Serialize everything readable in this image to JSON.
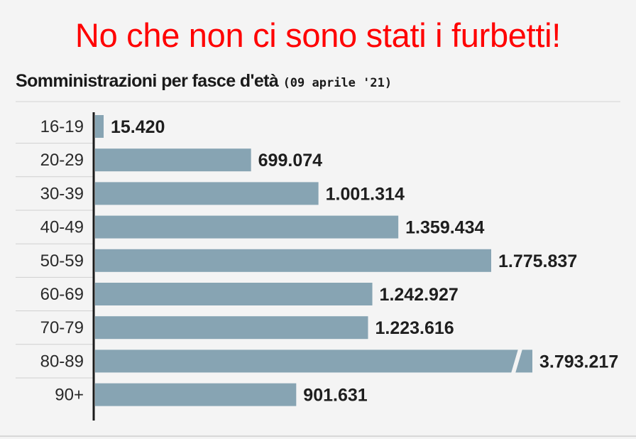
{
  "headline": "No che non ci sono stati i furbetti!",
  "subtitle_main": "Somministrazioni  per fasce d'età",
  "subtitle_date": "(09 aprile '21)",
  "colors": {
    "bar": "#87a4b3",
    "headline": "#ff0000",
    "axis": "#1a1a1a",
    "background": "#f4f4f4"
  },
  "chart_data": {
    "type": "bar",
    "orientation": "horizontal",
    "title": "Somministrazioni  per fasce d'età (09 aprile '21)",
    "categories": [
      "16-19",
      "20-29",
      "30-39",
      "40-49",
      "50-59",
      "60-69",
      "70-79",
      "80-89",
      "90+"
    ],
    "values": [
      15420,
      699074,
      1001314,
      1359434,
      1775837,
      1242927,
      1223616,
      3793217,
      901631
    ],
    "value_labels": [
      "15.420",
      "699.074",
      "1.001.314",
      "1.359.434",
      "1.775.837",
      "1.242.927",
      "1.223.616",
      "3.793.217",
      "901.631"
    ],
    "broken_bar_index": 7,
    "grid": false,
    "legend": "none"
  }
}
